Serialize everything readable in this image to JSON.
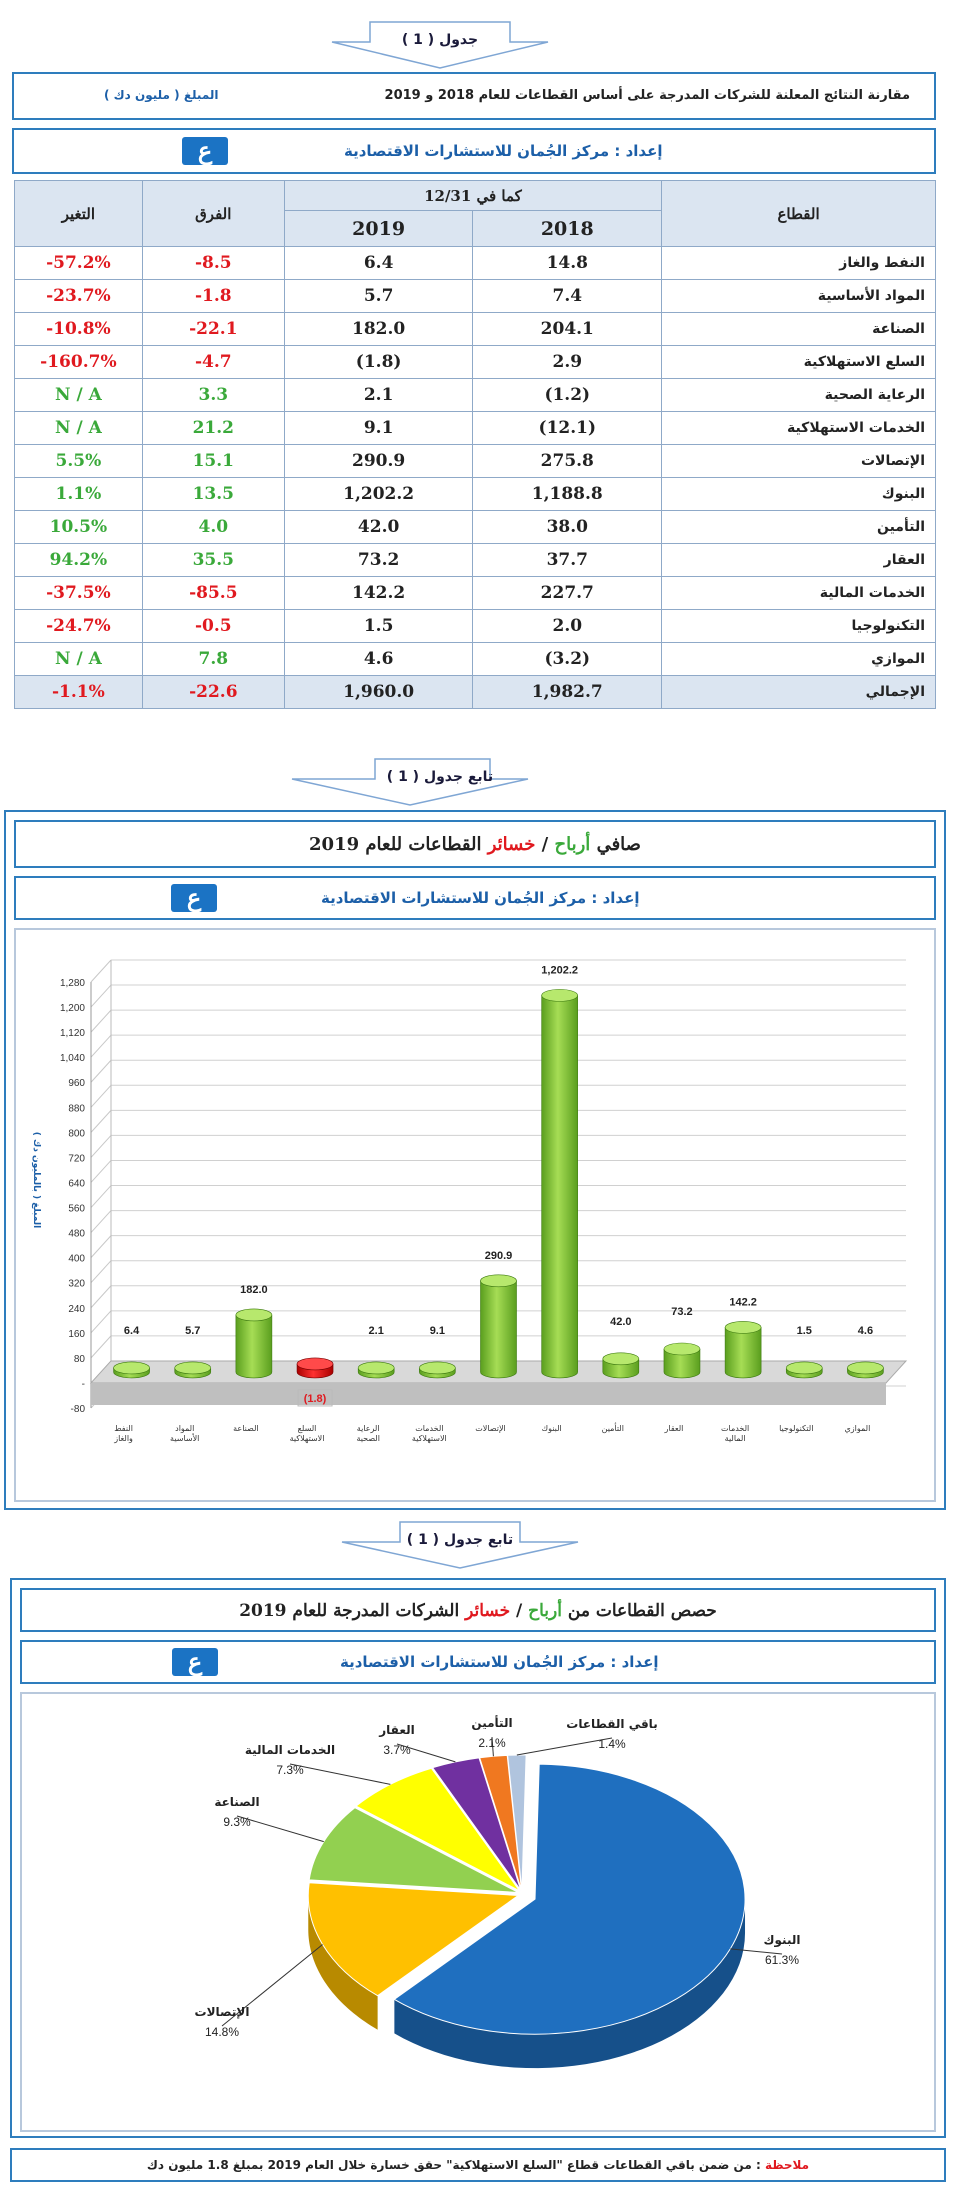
{
  "colors": {
    "accent": "#2e7dbd",
    "red": "#e0191f",
    "green": "#3aa93a",
    "bar": "#7cc23a"
  },
  "table1": {
    "tab_label": "جدول ( 1 )",
    "title": "مقارنة النتائج المعلنة للشركات المدرجة على أساس القطاعات للعام 2018 و 2019",
    "unit": "المبلغ ( مليون دك )",
    "prepared": "إعداد : مركز الجُمان للاستشارات الاقتصادية",
    "logo_glyph": "ع",
    "headers": {
      "sector": "القطاع",
      "as_of": "كما في 12/31",
      "y2018": "2018",
      "y2019": "2019",
      "diff": "الفرق",
      "change": "التغير"
    },
    "rows": [
      {
        "sector": "النفط والغاز",
        "y2018": "14.8",
        "y2019": "6.4",
        "diff": "-8.5",
        "change": "-57.2%",
        "dc": "red",
        "cc": "red"
      },
      {
        "sector": "المواد الأساسية",
        "y2018": "7.4",
        "y2019": "5.7",
        "diff": "-1.8",
        "change": "-23.7%",
        "dc": "red",
        "cc": "red"
      },
      {
        "sector": "الصناعة",
        "y2018": "204.1",
        "y2019": "182.0",
        "diff": "-22.1",
        "change": "-10.8%",
        "dc": "red",
        "cc": "red"
      },
      {
        "sector": "السلع الاستهلاكية",
        "y2018": "2.9",
        "y2019": "(1.8)",
        "diff": "-4.7",
        "change": "-160.7%",
        "dc": "red",
        "cc": "red"
      },
      {
        "sector": "الرعاية الصحية",
        "y2018": "(1.2)",
        "y2019": "2.1",
        "diff": "3.3",
        "change": "N / A",
        "dc": "green",
        "cc": "green"
      },
      {
        "sector": "الخدمات الاستهلاكية",
        "y2018": "(12.1)",
        "y2019": "9.1",
        "diff": "21.2",
        "change": "N / A",
        "dc": "green",
        "cc": "green"
      },
      {
        "sector": "الإتصالات",
        "y2018": "275.8",
        "y2019": "290.9",
        "diff": "15.1",
        "change": "5.5%",
        "dc": "green",
        "cc": "green"
      },
      {
        "sector": "البنوك",
        "y2018": "1,188.8",
        "y2019": "1,202.2",
        "diff": "13.5",
        "change": "1.1%",
        "dc": "green",
        "cc": "green"
      },
      {
        "sector": "التأمين",
        "y2018": "38.0",
        "y2019": "42.0",
        "diff": "4.0",
        "change": "10.5%",
        "dc": "green",
        "cc": "green"
      },
      {
        "sector": "العقار",
        "y2018": "37.7",
        "y2019": "73.2",
        "diff": "35.5",
        "change": "94.2%",
        "dc": "green",
        "cc": "green"
      },
      {
        "sector": "الخدمات المالية",
        "y2018": "227.7",
        "y2019": "142.2",
        "diff": "-85.5",
        "change": "-37.5%",
        "dc": "red",
        "cc": "red"
      },
      {
        "sector": "التكنولوجيا",
        "y2018": "2.0",
        "y2019": "1.5",
        "diff": "-0.5",
        "change": "-24.7%",
        "dc": "red",
        "cc": "red"
      },
      {
        "sector": "الموازي",
        "y2018": "(3.2)",
        "y2019": "4.6",
        "diff": "7.8",
        "change": "N / A",
        "dc": "green",
        "cc": "green"
      }
    ],
    "total": {
      "sector": "الإجمالي",
      "y2018": "1,982.7",
      "y2019": "1,960.0",
      "diff": "-22.6",
      "change": "-1.1%"
    }
  },
  "section2": {
    "tab_label": "تابع جدول ( 1 )",
    "title_a": "صافي",
    "title_profit": "أرباح",
    "title_sep": " / ",
    "title_loss": "خسائر",
    "title_b": "القطاعات للعام 2019",
    "prepared": "إعداد : مركز الجُمان للاستشارات الاقتصادية"
  },
  "section3": {
    "tab_label": "تابع جدول ( 1 )",
    "title_a": "حصص القطاعات من",
    "title_profit": "أرباح",
    "title_sep": " / ",
    "title_loss": "خسائر",
    "title_b": "الشركات المدرجة للعام 2019",
    "prepared": "إعداد : مركز الجُمان للاستشارات الاقتصادية",
    "note_label": "ملاحظة",
    "note_text": " : من ضمن باقي القطاعات قطاع \"السلع الاستهلاكية\" حقق خسارة خلال العام 2019 بمبلغ 1.8 مليون دك"
  },
  "chart_data": [
    {
      "type": "bar",
      "ylabel": "المبلغ ( بالمليون دك )",
      "ylim": [
        -80,
        1280
      ],
      "yticks": [
        "-80",
        "-",
        "80",
        "160",
        "240",
        "320",
        "400",
        "480",
        "560",
        "640",
        "720",
        "800",
        "880",
        "960",
        "1,040",
        "1,120",
        "1,200",
        "1,280"
      ],
      "categories": [
        "النفط والغاز",
        "المواد الأساسية",
        "الصناعة",
        "السلع الاستهلاكية",
        "الرعاية الصحية",
        "الخدمات الاستهلاكية",
        "الإتصالات",
        "البنوك",
        "التأمين",
        "العقار",
        "الخدمات المالية",
        "التكنولوجيا",
        "الموازي"
      ],
      "values": [
        6.4,
        5.7,
        182.0,
        -1.8,
        2.1,
        9.1,
        290.9,
        1202.2,
        42.0,
        73.2,
        142.2,
        1.5,
        4.6
      ],
      "labels": [
        "6.4",
        "5.7",
        "182.0",
        "(1.8)",
        "2.1",
        "9.1",
        "290.9",
        "1,202.2",
        "42.0",
        "73.2",
        "142.2",
        "1.5",
        "4.6"
      ]
    },
    {
      "type": "pie",
      "slices": [
        {
          "name": "البنوك",
          "value": 61.3,
          "label": "61.3%",
          "color": "#1f6fbf"
        },
        {
          "name": "الإتصالات",
          "value": 14.8,
          "label": "14.8%",
          "color": "#ffc000"
        },
        {
          "name": "الصناعة",
          "value": 9.3,
          "label": "9.3%",
          "color": "#92d050"
        },
        {
          "name": "الخدمات المالية",
          "value": 7.3,
          "label": "7.3%",
          "color": "#ffff00"
        },
        {
          "name": "العقار",
          "value": 3.7,
          "label": "3.7%",
          "color": "#7030a0"
        },
        {
          "name": "التأمين",
          "value": 2.1,
          "label": "2.1%",
          "color": "#f07820"
        },
        {
          "name": "باقي القطاعات",
          "value": 1.4,
          "label": "1.4%",
          "color": "#b0c4de"
        }
      ]
    }
  ]
}
